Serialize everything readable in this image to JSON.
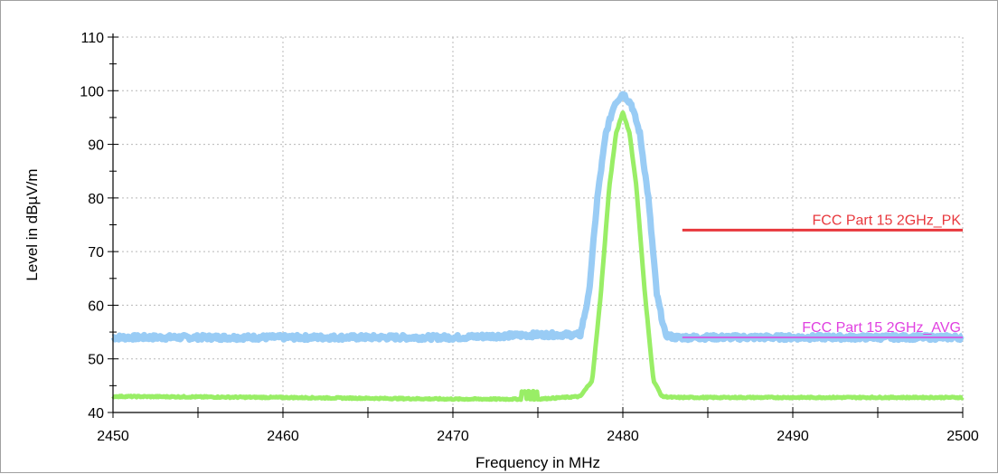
{
  "chart_data": {
    "type": "line",
    "xlabel": "Frequency in MHz",
    "ylabel": "Level in dBµV/m",
    "xlim": [
      2450,
      2500
    ],
    "ylim": [
      40,
      110
    ],
    "x_ticks": [
      2450,
      2460,
      2470,
      2480,
      2490,
      2500
    ],
    "y_ticks": [
      40,
      50,
      60,
      70,
      80,
      90,
      100,
      110
    ],
    "grid": true,
    "series": [
      {
        "color": "#99ccf5",
        "x": [
          2450,
          2460,
          2470,
          2475,
          2477.5,
          2478.0,
          2478.5,
          2479.0,
          2479.5,
          2480.0,
          2480.5,
          2481.0,
          2481.5,
          2482.0,
          2482.5,
          2483,
          2490,
          2500
        ],
        "values": [
          54,
          54,
          54,
          54.5,
          54.5,
          62,
          80,
          92,
          97.5,
          99.5,
          97.5,
          92,
          80,
          62,
          54.5,
          54,
          54,
          54
        ]
      },
      {
        "color": "#99ee66",
        "x": [
          2450,
          2460,
          2470,
          2474,
          2475,
          2477.5,
          2478.2,
          2478.7,
          2479.2,
          2479.6,
          2480.0,
          2480.4,
          2480.8,
          2481.3,
          2481.8,
          2482.3,
          2483,
          2490,
          2500
        ],
        "values": [
          43,
          42.8,
          42.5,
          42.5,
          42.5,
          43,
          46,
          62,
          82,
          92,
          96,
          92,
          82,
          62,
          46,
          43,
          42.8,
          42.8,
          42.8
        ]
      }
    ],
    "limits": [
      {
        "label": "FCC Part 15 2GHz_PK",
        "value": 74,
        "x_start": 2483.5,
        "color": "#e8383d"
      },
      {
        "label": "FCC Part 15 2GHz_AVG",
        "value": 54,
        "x_start": 2483.5,
        "color": "#e040e0"
      }
    ]
  }
}
